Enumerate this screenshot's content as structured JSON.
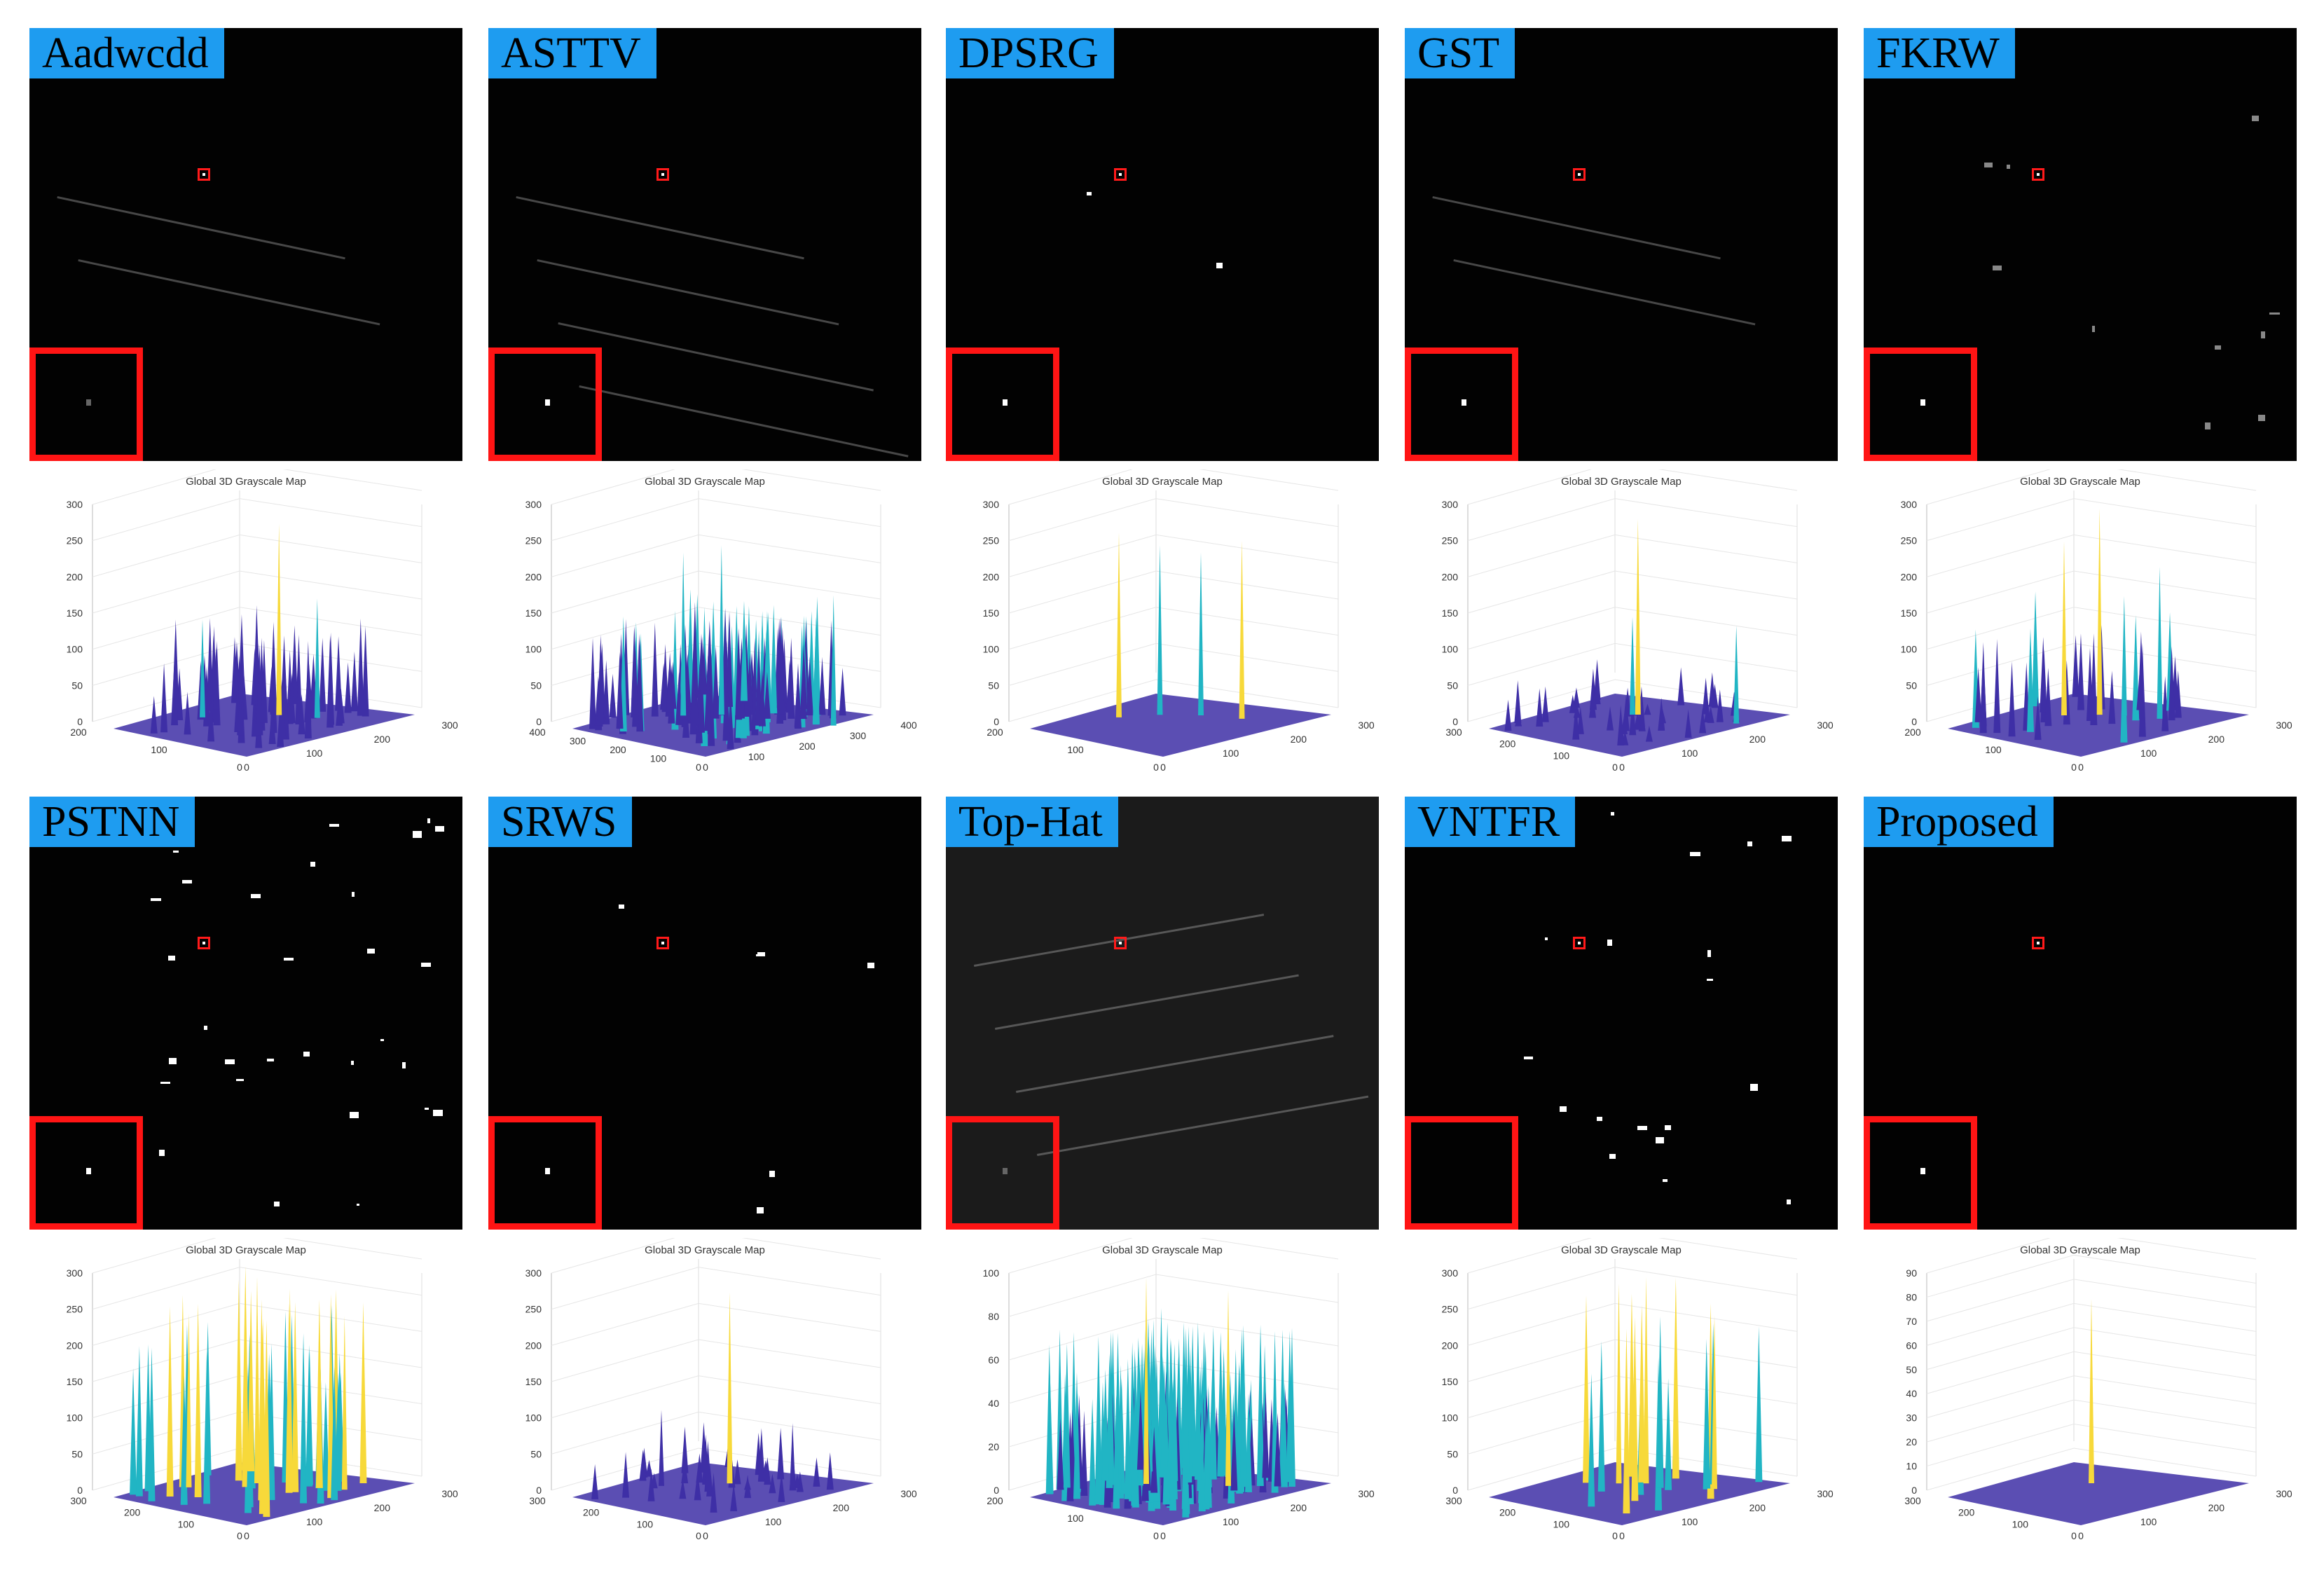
{
  "plot_title": "Global 3D Grayscale Map",
  "colors": {
    "label_bg": "#1e9cf0",
    "box": "#ff1a1a",
    "surface_low": "#3e2fa6",
    "surface_mid": "#21b5c4",
    "surface_high": "#f7d93a"
  },
  "panels": [
    {
      "label": "Aadwcdd",
      "zticks": [
        "0",
        "50",
        "100",
        "150",
        "200",
        "250",
        "300"
      ],
      "xticks": [
        "0",
        "100",
        "200",
        "300"
      ],
      "yticks": [
        "200",
        "100",
        "0"
      ]
    },
    {
      "label": "ASTTV",
      "zticks": [
        "0",
        "50",
        "100",
        "150",
        "200",
        "250",
        "300"
      ],
      "xticks": [
        "0",
        "100",
        "200",
        "300",
        "400"
      ],
      "yticks": [
        "400",
        "300",
        "200",
        "100",
        "0"
      ]
    },
    {
      "label": "DPSRG",
      "zticks": [
        "0",
        "50",
        "100",
        "150",
        "200",
        "250",
        "300"
      ],
      "xticks": [
        "0",
        "100",
        "200",
        "300"
      ],
      "yticks": [
        "200",
        "100",
        "0"
      ]
    },
    {
      "label": "GST",
      "zticks": [
        "0",
        "50",
        "100",
        "150",
        "200",
        "250",
        "300"
      ],
      "xticks": [
        "0",
        "100",
        "200",
        "300"
      ],
      "yticks": [
        "300",
        "200",
        "100",
        "0"
      ]
    },
    {
      "label": "FKRW",
      "zticks": [
        "0",
        "50",
        "100",
        "150",
        "200",
        "250",
        "300"
      ],
      "xticks": [
        "0",
        "100",
        "200",
        "300"
      ],
      "yticks": [
        "200",
        "100",
        "0"
      ]
    },
    {
      "label": "PSTNN",
      "zticks": [
        "0",
        "50",
        "100",
        "150",
        "200",
        "250",
        "300"
      ],
      "xticks": [
        "0",
        "100",
        "200",
        "300"
      ],
      "yticks": [
        "300",
        "200",
        "100",
        "0"
      ]
    },
    {
      "label": "SRWS",
      "zticks": [
        "0",
        "50",
        "100",
        "150",
        "200",
        "250",
        "300"
      ],
      "xticks": [
        "0",
        "100",
        "200",
        "300"
      ],
      "yticks": [
        "300",
        "200",
        "100",
        "0"
      ]
    },
    {
      "label": "Top-Hat",
      "zticks": [
        "0",
        "20",
        "40",
        "60",
        "80",
        "100"
      ],
      "xticks": [
        "0",
        "100",
        "200",
        "300"
      ],
      "yticks": [
        "200",
        "100",
        "0"
      ]
    },
    {
      "label": "VNTFR",
      "zticks": [
        "0",
        "50",
        "100",
        "150",
        "200",
        "250",
        "300"
      ],
      "xticks": [
        "0",
        "100",
        "200",
        "300"
      ],
      "yticks": [
        "300",
        "200",
        "100",
        "0"
      ]
    },
    {
      "label": "Proposed",
      "zticks": [
        "0",
        "10",
        "20",
        "30",
        "40",
        "50",
        "60",
        "70",
        "80",
        "90"
      ],
      "xticks": [
        "0",
        "100",
        "200",
        "300"
      ],
      "yticks": [
        "300",
        "200",
        "100",
        "0"
      ]
    }
  ]
}
